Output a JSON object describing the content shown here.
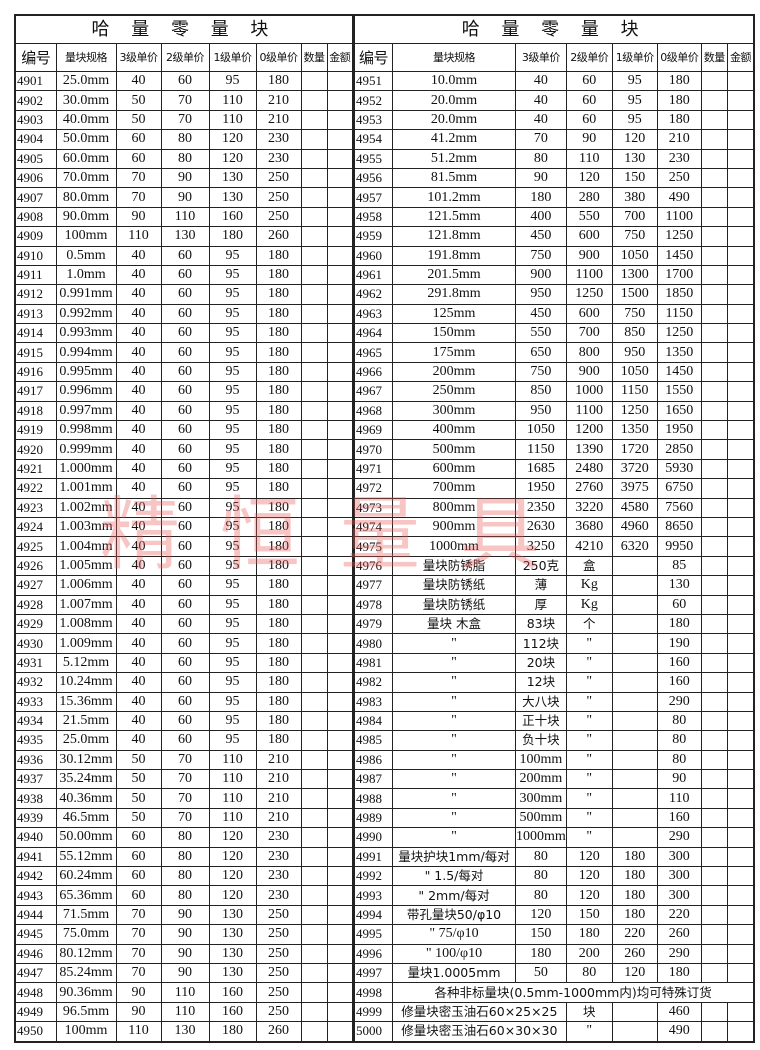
{
  "title": "哈 量 零 量 块",
  "watermark": "精恒量具",
  "headers": [
    "编号",
    "量块规格",
    "3级单价",
    "2级单价",
    "1级单价",
    "0级单价",
    "数量",
    "金额"
  ],
  "left": {
    "rows": [
      [
        "4901",
        "25.0mm",
        "40",
        "60",
        "95",
        "180",
        "",
        ""
      ],
      [
        "4902",
        "30.0mm",
        "50",
        "70",
        "110",
        "210",
        "",
        ""
      ],
      [
        "4903",
        "40.0mm",
        "50",
        "70",
        "110",
        "210",
        "",
        ""
      ],
      [
        "4904",
        "50.0mm",
        "60",
        "80",
        "120",
        "230",
        "",
        ""
      ],
      [
        "4905",
        "60.0mm",
        "60",
        "80",
        "120",
        "230",
        "",
        ""
      ],
      [
        "4906",
        "70.0mm",
        "70",
        "90",
        "130",
        "250",
        "",
        ""
      ],
      [
        "4907",
        "80.0mm",
        "70",
        "90",
        "130",
        "250",
        "",
        ""
      ],
      [
        "4908",
        "90.0mm",
        "90",
        "110",
        "160",
        "250",
        "",
        ""
      ],
      [
        "4909",
        "100mm",
        "110",
        "130",
        "180",
        "260",
        "",
        ""
      ],
      [
        "4910",
        "0.5mm",
        "40",
        "60",
        "95",
        "180",
        "",
        ""
      ],
      [
        "4911",
        "1.0mm",
        "40",
        "60",
        "95",
        "180",
        "",
        ""
      ],
      [
        "4912",
        "0.991mm",
        "40",
        "60",
        "95",
        "180",
        "",
        ""
      ],
      [
        "4913",
        "0.992mm",
        "40",
        "60",
        "95",
        "180",
        "",
        ""
      ],
      [
        "4914",
        "0.993mm",
        "40",
        "60",
        "95",
        "180",
        "",
        ""
      ],
      [
        "4915",
        "0.994mm",
        "40",
        "60",
        "95",
        "180",
        "",
        ""
      ],
      [
        "4916",
        "0.995mm",
        "40",
        "60",
        "95",
        "180",
        "",
        ""
      ],
      [
        "4917",
        "0.996mm",
        "40",
        "60",
        "95",
        "180",
        "",
        ""
      ],
      [
        "4918",
        "0.997mm",
        "40",
        "60",
        "95",
        "180",
        "",
        ""
      ],
      [
        "4919",
        "0.998mm",
        "40",
        "60",
        "95",
        "180",
        "",
        ""
      ],
      [
        "4920",
        "0.999mm",
        "40",
        "60",
        "95",
        "180",
        "",
        ""
      ],
      [
        "4921",
        "1.000mm",
        "40",
        "60",
        "95",
        "180",
        "",
        ""
      ],
      [
        "4922",
        "1.001mm",
        "40",
        "60",
        "95",
        "180",
        "",
        ""
      ],
      [
        "4923",
        "1.002mm",
        "40",
        "60",
        "95",
        "180",
        "",
        ""
      ],
      [
        "4924",
        "1.003mm",
        "40",
        "60",
        "95",
        "180",
        "",
        ""
      ],
      [
        "4925",
        "1.004mm",
        "40",
        "60",
        "95",
        "180",
        "",
        ""
      ],
      [
        "4926",
        "1.005mm",
        "40",
        "60",
        "95",
        "180",
        "",
        ""
      ],
      [
        "4927",
        "1.006mm",
        "40",
        "60",
        "95",
        "180",
        "",
        ""
      ],
      [
        "4928",
        "1.007mm",
        "40",
        "60",
        "95",
        "180",
        "",
        ""
      ],
      [
        "4929",
        "1.008mm",
        "40",
        "60",
        "95",
        "180",
        "",
        ""
      ],
      [
        "4930",
        "1.009mm",
        "40",
        "60",
        "95",
        "180",
        "",
        ""
      ],
      [
        "4931",
        "5.12mm",
        "40",
        "60",
        "95",
        "180",
        "",
        ""
      ],
      [
        "4932",
        "10.24mm",
        "40",
        "60",
        "95",
        "180",
        "",
        ""
      ],
      [
        "4933",
        "15.36mm",
        "40",
        "60",
        "95",
        "180",
        "",
        ""
      ],
      [
        "4934",
        "21.5mm",
        "40",
        "60",
        "95",
        "180",
        "",
        ""
      ],
      [
        "4935",
        "25.0mm",
        "40",
        "60",
        "95",
        "180",
        "",
        ""
      ],
      [
        "4936",
        "30.12mm",
        "50",
        "70",
        "110",
        "210",
        "",
        ""
      ],
      [
        "4937",
        "35.24mm",
        "50",
        "70",
        "110",
        "210",
        "",
        ""
      ],
      [
        "4938",
        "40.36mm",
        "50",
        "70",
        "110",
        "210",
        "",
        ""
      ],
      [
        "4939",
        "46.5mm",
        "50",
        "70",
        "110",
        "210",
        "",
        ""
      ],
      [
        "4940",
        "50.00mm",
        "60",
        "80",
        "120",
        "230",
        "",
        ""
      ],
      [
        "4941",
        "55.12mm",
        "60",
        "80",
        "120",
        "230",
        "",
        ""
      ],
      [
        "4942",
        "60.24mm",
        "60",
        "80",
        "120",
        "230",
        "",
        ""
      ],
      [
        "4943",
        "65.36mm",
        "60",
        "80",
        "120",
        "230",
        "",
        ""
      ],
      [
        "4944",
        "71.5mm",
        "70",
        "90",
        "130",
        "250",
        "",
        ""
      ],
      [
        "4945",
        "75.0mm",
        "70",
        "90",
        "130",
        "250",
        "",
        ""
      ],
      [
        "4946",
        "80.12mm",
        "70",
        "90",
        "130",
        "250",
        "",
        ""
      ],
      [
        "4947",
        "85.24mm",
        "70",
        "90",
        "130",
        "250",
        "",
        ""
      ],
      [
        "4948",
        "90.36mm",
        "90",
        "110",
        "160",
        "250",
        "",
        ""
      ],
      [
        "4949",
        "96.5mm",
        "90",
        "110",
        "160",
        "250",
        "",
        ""
      ],
      [
        "4950",
        "100mm",
        "110",
        "130",
        "180",
        "260",
        "",
        ""
      ]
    ]
  },
  "right": {
    "rows": [
      [
        "4951",
        "10.0mm",
        "40",
        "60",
        "95",
        "180",
        "",
        ""
      ],
      [
        "4952",
        "20.0mm",
        "40",
        "60",
        "95",
        "180",
        "",
        ""
      ],
      [
        "4953",
        "20.0mm",
        "40",
        "60",
        "95",
        "180",
        "",
        ""
      ],
      [
        "4954",
        "41.2mm",
        "70",
        "90",
        "120",
        "210",
        "",
        ""
      ],
      [
        "4955",
        "51.2mm",
        "80",
        "110",
        "130",
        "230",
        "",
        ""
      ],
      [
        "4956",
        "81.5mm",
        "90",
        "120",
        "150",
        "250",
        "",
        ""
      ],
      [
        "4957",
        "101.2mm",
        "180",
        "280",
        "380",
        "490",
        "",
        ""
      ],
      [
        "4958",
        "121.5mm",
        "400",
        "550",
        "700",
        "1100",
        "",
        ""
      ],
      [
        "4959",
        "121.8mm",
        "450",
        "600",
        "750",
        "1250",
        "",
        ""
      ],
      [
        "4960",
        "191.8mm",
        "750",
        "900",
        "1050",
        "1450",
        "",
        ""
      ],
      [
        "4961",
        "201.5mm",
        "900",
        "1100",
        "1300",
        "1700",
        "",
        ""
      ],
      [
        "4962",
        "291.8mm",
        "950",
        "1250",
        "1500",
        "1850",
        "",
        ""
      ],
      [
        "4963",
        "125mm",
        "450",
        "600",
        "750",
        "1150",
        "",
        ""
      ],
      [
        "4964",
        "150mm",
        "550",
        "700",
        "850",
        "1250",
        "",
        ""
      ],
      [
        "4965",
        "175mm",
        "650",
        "800",
        "950",
        "1350",
        "",
        ""
      ],
      [
        "4966",
        "200mm",
        "750",
        "900",
        "1050",
        "1450",
        "",
        ""
      ],
      [
        "4967",
        "250mm",
        "850",
        "1000",
        "1150",
        "1550",
        "",
        ""
      ],
      [
        "4968",
        "300mm",
        "950",
        "1100",
        "1250",
        "1650",
        "",
        ""
      ],
      [
        "4969",
        "400mm",
        "1050",
        "1200",
        "1350",
        "1950",
        "",
        ""
      ],
      [
        "4970",
        "500mm",
        "1150",
        "1390",
        "1720",
        "2850",
        "",
        ""
      ],
      [
        "4971",
        "600mm",
        "1685",
        "2480",
        "3720",
        "5930",
        "",
        ""
      ],
      [
        "4972",
        "700mm",
        "1950",
        "2760",
        "3975",
        "6750",
        "",
        ""
      ],
      [
        "4973",
        "800mm",
        "2350",
        "3220",
        "4580",
        "7560",
        "",
        ""
      ],
      [
        "4974",
        "900mm",
        "2630",
        "3680",
        "4960",
        "8650",
        "",
        ""
      ],
      [
        "4975",
        "1000mm",
        "3250",
        "4210",
        "6320",
        "9950",
        "",
        ""
      ],
      [
        "4976",
        "量块防锈脂",
        "250克",
        "盒",
        "",
        "85",
        "",
        ""
      ],
      [
        "4977",
        "量块防锈纸",
        "薄",
        "Kg",
        "",
        "130",
        "",
        ""
      ],
      [
        "4978",
        "量块防锈纸",
        "厚",
        "Kg",
        "",
        "60",
        "",
        ""
      ],
      [
        "4979",
        "量块 木盒",
        "83块",
        "个",
        "",
        "180",
        "",
        ""
      ],
      [
        "4980",
        "\"",
        "112块",
        "\"",
        "",
        "190",
        "",
        ""
      ],
      [
        "4981",
        "\"",
        "20块",
        "\"",
        "",
        "160",
        "",
        ""
      ],
      [
        "4982",
        "\"",
        "12块",
        "\"",
        "",
        "160",
        "",
        ""
      ],
      [
        "4983",
        "\"",
        "大八块",
        "\"",
        "",
        "290",
        "",
        ""
      ],
      [
        "4984",
        "\"",
        "正十块",
        "\"",
        "",
        "80",
        "",
        ""
      ],
      [
        "4985",
        "\"",
        "负十块",
        "\"",
        "",
        "80",
        "",
        ""
      ],
      [
        "4986",
        "\"",
        "100mm",
        "\"",
        "",
        "80",
        "",
        ""
      ],
      [
        "4987",
        "\"",
        "200mm",
        "\"",
        "",
        "90",
        "",
        ""
      ],
      [
        "4988",
        "\"",
        "300mm",
        "\"",
        "",
        "110",
        "",
        ""
      ],
      [
        "4989",
        "\"",
        "500mm",
        "\"",
        "",
        "160",
        "",
        ""
      ],
      [
        "4990",
        "\"",
        "1000mm",
        "\"",
        "",
        "290",
        "",
        ""
      ],
      [
        "4991",
        "量块护块1mm/每对",
        "80",
        "120",
        "180",
        "300",
        "",
        ""
      ],
      [
        "4992",
        "\" 1.5/每对",
        "80",
        "120",
        "180",
        "300",
        "",
        ""
      ],
      [
        "4993",
        "\" 2mm/每对",
        "80",
        "120",
        "180",
        "300",
        "",
        ""
      ],
      [
        "4994",
        "带孔量块50/φ10",
        "120",
        "150",
        "180",
        "220",
        "",
        ""
      ],
      [
        "4995",
        "\" 75/φ10",
        "150",
        "180",
        "220",
        "260",
        "",
        ""
      ],
      [
        "4996",
        "\" 100/φ10",
        "180",
        "200",
        "260",
        "290",
        "",
        ""
      ],
      [
        "4997",
        "量块1.0005mm",
        "50",
        "80",
        "120",
        "180",
        "",
        ""
      ],
      [
        "4998",
        "各种非标量块(0.5mm-1000mm内)均可特殊订货"
      ],
      [
        "4999",
        "修量块密玉油石60×25×25",
        "块",
        "",
        "460",
        "",
        ""
      ],
      [
        "5000",
        "修量块密玉油石60×30×30",
        "\"",
        "",
        "490",
        "",
        ""
      ]
    ]
  }
}
